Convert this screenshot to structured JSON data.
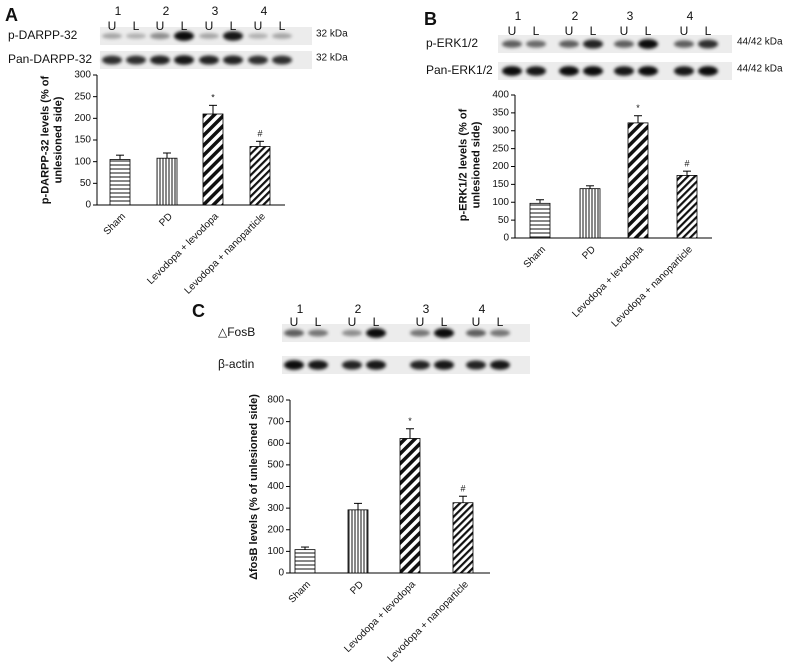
{
  "chart_data": [
    {
      "type": "bar",
      "panel": "A",
      "blot": {
        "lanes": [
          "1",
          "2",
          "3",
          "4"
        ],
        "sides": [
          "U",
          "L"
        ],
        "rows": [
          {
            "label": "p-DARPP-32",
            "size": "32 kDa"
          },
          {
            "label": "Pan-DARPP-32",
            "size": "32 kDa"
          }
        ]
      },
      "ylabel": [
        "p-DARPP-32 levels (% of",
        "unlesioned side)"
      ],
      "categories": [
        "Sham",
        "PD",
        "Levodopa + levodopa",
        "Levodopa + nanoparticle"
      ],
      "values": [
        105,
        108,
        210,
        135
      ],
      "errors": [
        10,
        12,
        20,
        12
      ],
      "patterns": [
        "horizontal",
        "vertical",
        "diagonal-bold",
        "diagonal"
      ],
      "annotations": [
        {
          "category": "Levodopa + levodopa",
          "text": "*"
        },
        {
          "category": "Levodopa + nanoparticle",
          "text": "#"
        }
      ],
      "ylim": [
        0,
        300
      ],
      "yticks": [
        0,
        50,
        100,
        150,
        200,
        250,
        300
      ]
    },
    {
      "type": "bar",
      "panel": "B",
      "blot": {
        "lanes": [
          "1",
          "2",
          "3",
          "4"
        ],
        "sides": [
          "U",
          "L"
        ],
        "rows": [
          {
            "label": "p-ERK1/2",
            "size": "44/42 kDa"
          },
          {
            "label": "Pan-ERK1/2",
            "size": "44/42 kDa"
          }
        ]
      },
      "ylabel": [
        "p-ERK1/2 levels (% of",
        "unlesioned side)"
      ],
      "categories": [
        "Sham",
        "PD",
        "Levodopa + levodopa",
        "Levodopa + nanoparticle"
      ],
      "values": [
        97,
        138,
        322,
        175
      ],
      "errors": [
        10,
        8,
        20,
        12
      ],
      "patterns": [
        "horizontal",
        "vertical",
        "diagonal-bold",
        "diagonal"
      ],
      "annotations": [
        {
          "category": "Levodopa + levodopa",
          "text": "*"
        },
        {
          "category": "Levodopa + nanoparticle",
          "text": "#"
        }
      ],
      "ylim": [
        0,
        400
      ],
      "yticks": [
        0,
        50,
        100,
        150,
        200,
        250,
        300,
        350,
        400
      ]
    },
    {
      "type": "bar",
      "panel": "C",
      "blot": {
        "lanes": [
          "1",
          "2",
          "3",
          "4"
        ],
        "sides": [
          "U",
          "L"
        ],
        "rows": [
          {
            "label": "△FosB"
          },
          {
            "label": "β-actin"
          }
        ]
      },
      "ylabel": [
        "ΔfosB levels (% of unlesioned side)"
      ],
      "categories": [
        "Sham",
        "PD",
        "Levodopa + levodopa",
        "Levodopa + nanoparticle"
      ],
      "values": [
        108,
        292,
        622,
        325
      ],
      "errors": [
        12,
        30,
        45,
        30
      ],
      "patterns": [
        "horizontal",
        "vertical",
        "diagonal-bold",
        "diagonal"
      ],
      "annotations": [
        {
          "category": "Levodopa + levodopa",
          "text": "*"
        },
        {
          "category": "Levodopa + nanoparticle",
          "text": "#"
        }
      ],
      "ylim": [
        0,
        800
      ],
      "yticks": [
        0,
        100,
        200,
        300,
        400,
        500,
        600,
        700,
        800
      ]
    }
  ]
}
